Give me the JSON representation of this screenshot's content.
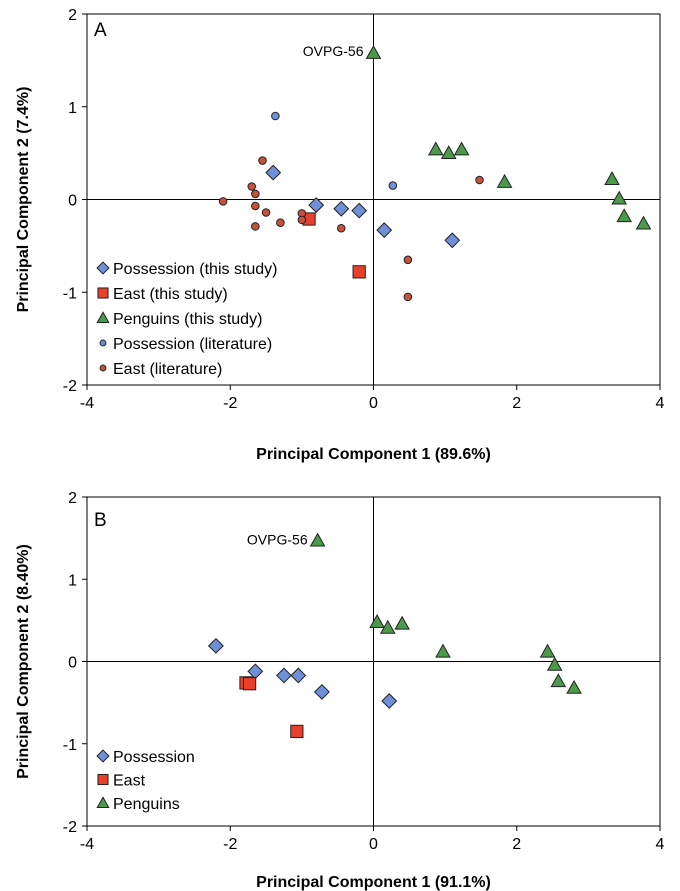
{
  "chart_data": [
    {
      "type": "scatter",
      "panel_label": "A",
      "xlabel": "Principal Component 1 (89.6%)",
      "ylabel": "Principal Component 2 (7.4%)",
      "xlim": [
        -4,
        4
      ],
      "ylim": [
        -2,
        2
      ],
      "xticks": [
        -4,
        -2,
        0,
        2,
        4
      ],
      "yticks": [
        -2,
        -1,
        0,
        1,
        2
      ],
      "grid": false,
      "legend_placement": "lower-left",
      "annotations": [
        {
          "text": "OVPG-56",
          "x": 0.0,
          "y": 1.58
        }
      ],
      "series": [
        {
          "name": "Possession (this study)",
          "marker": "diamond",
          "color": "#6f8fd8",
          "points": [
            [
              -1.4,
              0.29
            ],
            [
              -0.8,
              -0.06
            ],
            [
              -0.45,
              -0.1
            ],
            [
              -0.2,
              -0.12
            ],
            [
              0.15,
              -0.33
            ],
            [
              1.1,
              -0.44
            ]
          ]
        },
        {
          "name": "East (this study)",
          "marker": "square",
          "color": "#e8402a",
          "points": [
            [
              -0.9,
              -0.21
            ],
            [
              -0.2,
              -0.78
            ]
          ]
        },
        {
          "name": "Penguins (this study)",
          "marker": "triangle",
          "color": "#4a9a4a",
          "points": [
            [
              0.0,
              1.58
            ],
            [
              0.87,
              0.54
            ],
            [
              1.05,
              0.5
            ],
            [
              1.23,
              0.54
            ],
            [
              1.83,
              0.19
            ],
            [
              3.33,
              0.22
            ],
            [
              3.43,
              0.01
            ],
            [
              3.5,
              -0.18
            ],
            [
              3.77,
              -0.26
            ]
          ]
        },
        {
          "name": "Possession (literature)",
          "marker": "circle",
          "color": "#6f8fd8",
          "points": [
            [
              -1.37,
              0.9
            ],
            [
              0.27,
              0.15
            ]
          ]
        },
        {
          "name": "East (literature)",
          "marker": "circle",
          "color": "#c8503c",
          "points": [
            [
              -2.1,
              -0.02
            ],
            [
              -1.7,
              0.14
            ],
            [
              -1.65,
              0.06
            ],
            [
              -1.65,
              -0.07
            ],
            [
              -1.65,
              -0.29
            ],
            [
              -1.55,
              0.42
            ],
            [
              -1.5,
              -0.14
            ],
            [
              -1.3,
              -0.25
            ],
            [
              -1.0,
              -0.15
            ],
            [
              -1.0,
              -0.22
            ],
            [
              -0.45,
              -0.31
            ],
            [
              0.48,
              -0.65
            ],
            [
              0.48,
              -1.05
            ],
            [
              1.48,
              0.21
            ]
          ]
        }
      ]
    },
    {
      "type": "scatter",
      "panel_label": "B",
      "xlabel": "Principal Component 1 (91.1%)",
      "ylabel": "Principal Component 2 (8.40%)",
      "xlim": [
        -4,
        4
      ],
      "ylim": [
        -2,
        2
      ],
      "xticks": [
        -4,
        -2,
        0,
        2,
        4
      ],
      "yticks": [
        -2,
        -1,
        0,
        1,
        2
      ],
      "grid": false,
      "legend_placement": "lower-left",
      "annotations": [
        {
          "text": "OVPG-56",
          "x": -0.78,
          "y": 1.47
        }
      ],
      "series": [
        {
          "name": "Possession",
          "marker": "diamond",
          "color": "#6f8fd8",
          "points": [
            [
              -2.2,
              0.19
            ],
            [
              -1.65,
              -0.12
            ],
            [
              -1.25,
              -0.17
            ],
            [
              -1.05,
              -0.17
            ],
            [
              -0.72,
              -0.37
            ],
            [
              0.22,
              -0.48
            ]
          ]
        },
        {
          "name": "East",
          "marker": "square",
          "color": "#e8402a",
          "points": [
            [
              -1.78,
              -0.26
            ],
            [
              -1.73,
              -0.27
            ],
            [
              -1.07,
              -0.85
            ]
          ]
        },
        {
          "name": "Penguins",
          "marker": "triangle",
          "color": "#4a9a4a",
          "points": [
            [
              -0.78,
              1.47
            ],
            [
              0.05,
              0.48
            ],
            [
              0.2,
              0.41
            ],
            [
              0.4,
              0.46
            ],
            [
              0.97,
              0.12
            ],
            [
              2.43,
              0.12
            ],
            [
              2.53,
              -0.04
            ],
            [
              2.58,
              -0.24
            ],
            [
              2.8,
              -0.32
            ]
          ]
        }
      ]
    }
  ]
}
